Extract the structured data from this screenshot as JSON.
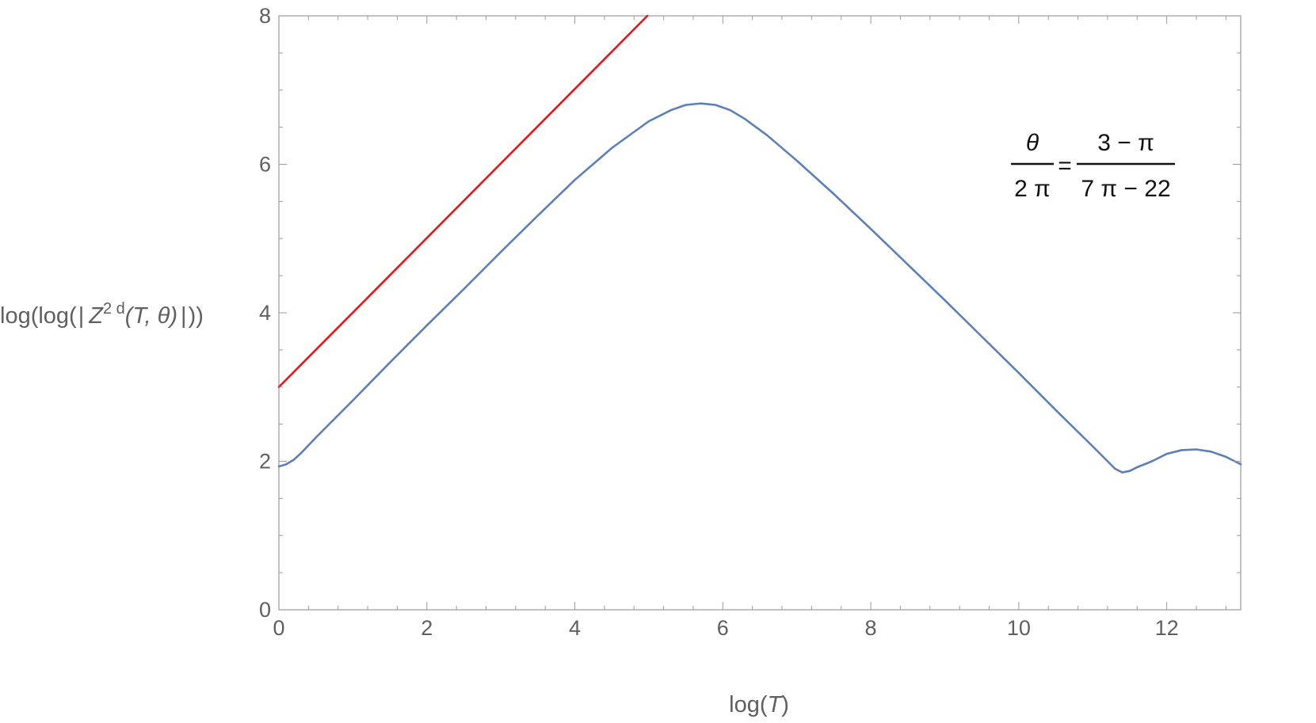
{
  "chart_data": {
    "type": "line",
    "xlabel_base": "log(",
    "xlabel_var": "T",
    "xlabel_close": ")",
    "ylabel": {
      "pre": "log(log(",
      "bar1": "|",
      "symbol": "Z",
      "sup": "2 d",
      "args": "(T, θ)",
      "bar2": "|",
      "post": "))"
    },
    "xlim": [
      0,
      13
    ],
    "ylim": [
      0,
      8
    ],
    "x_ticks": [
      "0",
      "2",
      "4",
      "6",
      "8",
      "10",
      "12"
    ],
    "y_ticks": [
      "0",
      "2",
      "4",
      "6",
      "8"
    ],
    "annotation": {
      "lhs_num": "θ",
      "lhs_den": "2 π",
      "equals": "=",
      "rhs_num": "3 − π",
      "rhs_den": "7 π − 22"
    },
    "series": [
      {
        "color": "#e8141a",
        "x": [
          0,
          4.98
        ],
        "y": [
          3.0,
          8.0
        ]
      },
      {
        "color": "#5b7fb8",
        "x": [
          0,
          0.1,
          0.2,
          0.3,
          0.5,
          1.0,
          1.5,
          2.0,
          2.5,
          3.0,
          3.5,
          4.0,
          4.5,
          5.0,
          5.3,
          5.5,
          5.7,
          5.9,
          6.1,
          6.3,
          6.6,
          7.0,
          7.5,
          8.0,
          8.5,
          9.0,
          9.5,
          10.0,
          10.5,
          11.0,
          11.3,
          11.4,
          11.5,
          11.6,
          11.8,
          12.0,
          12.2,
          12.4,
          12.6,
          12.8,
          13.0
        ],
        "y": [
          1.93,
          1.96,
          2.02,
          2.11,
          2.32,
          2.82,
          3.33,
          3.83,
          4.32,
          4.82,
          5.31,
          5.79,
          6.22,
          6.58,
          6.73,
          6.8,
          6.82,
          6.8,
          6.73,
          6.61,
          6.39,
          6.05,
          5.6,
          5.13,
          4.65,
          4.17,
          3.68,
          3.19,
          2.69,
          2.2,
          1.9,
          1.85,
          1.87,
          1.92,
          2.0,
          2.1,
          2.15,
          2.16,
          2.13,
          2.06,
          1.96
        ]
      }
    ]
  }
}
